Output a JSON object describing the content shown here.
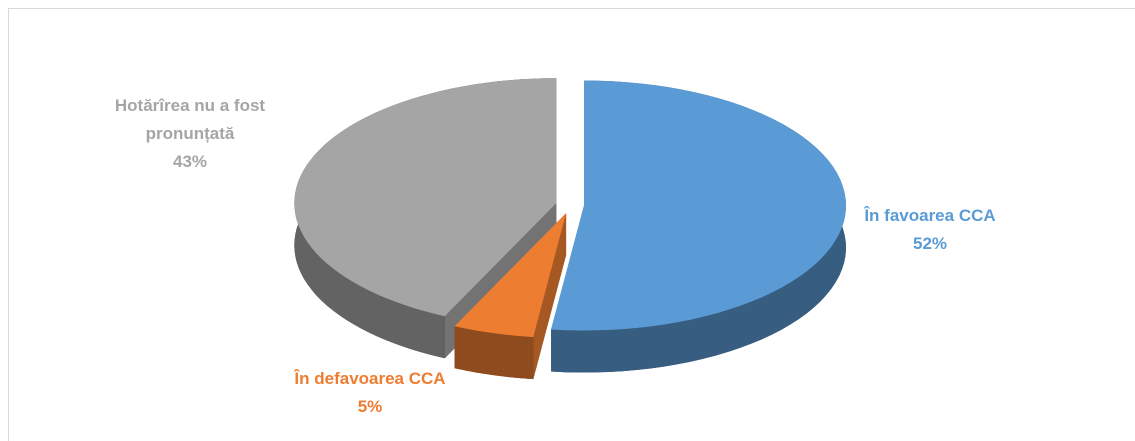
{
  "chart_data": {
    "type": "pie",
    "categories": [
      "În favoarea CCA",
      "În defavoarea CCA",
      "Hotărîrea nu a fost pronunțată"
    ],
    "values": [
      52,
      5,
      43
    ],
    "value_labels": [
      "52%",
      "5%",
      "43%"
    ],
    "colors": [
      "#5b9bd5",
      "#ed7d31",
      "#a5a5a5"
    ]
  }
}
